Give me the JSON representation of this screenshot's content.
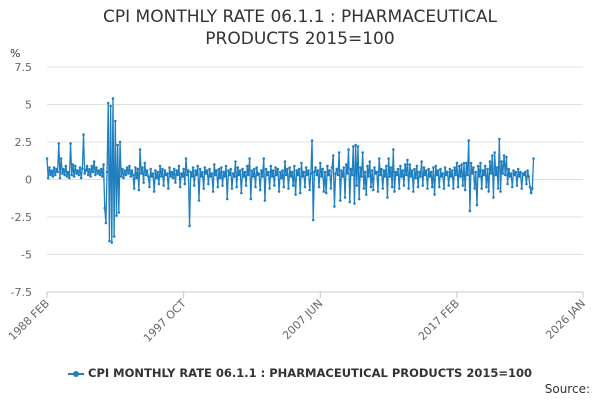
{
  "chart_data": {
    "type": "line",
    "title_lines": [
      "CPI MONTHLY RATE 06.1.1 : PHARMACEUTICAL",
      "PRODUCTS 2015=100"
    ],
    "ylabel": "%",
    "xlabel": "",
    "ylim": [
      -7.5,
      7.5
    ],
    "y_ticks": [
      7.5,
      5,
      2.5,
      0,
      -2.5,
      -5,
      -7.5
    ],
    "y_tick_labels": [
      "7.5",
      "5",
      "2.5",
      "0",
      "-2.5",
      "-5",
      "-7.5"
    ],
    "x_range": [
      "1988 FEB",
      "2026 JAN"
    ],
    "x_ticks": [
      {
        "label": "1988 FEB",
        "t": 1988.083
      },
      {
        "label": "1997 OCT",
        "t": 1997.75
      },
      {
        "label": "2007 JUN",
        "t": 2007.417
      },
      {
        "label": "2017 FEB",
        "t": 2017.083
      },
      {
        "label": "2026 JAN",
        "t": 2026.0
      }
    ],
    "grid": true,
    "legend_position": "bottom",
    "series": [
      {
        "name": "CPI MONTHLY RATE 06.1.1 : PHARMACEUTICAL PRODUCTS 2015=100",
        "color": "#1f7fbf"
      }
    ],
    "x_start": 1988.083,
    "x_step": 0.08333,
    "values": [
      1.4,
      0.1,
      0.8,
      0.3,
      0.6,
      0.2,
      0.8,
      0.3,
      0.7,
      0.5,
      2.4,
      0.1,
      1.4,
      0.4,
      0.7,
      0.3,
      0.9,
      0.2,
      0.5,
      0.1,
      2.4,
      0.3,
      1.0,
      0.2,
      0.9,
      0.4,
      0.6,
      0.3,
      0.8,
      0.1,
      0.7,
      3.0,
      0.4,
      0.6,
      0.9,
      0.3,
      0.7,
      0.2,
      0.9,
      0.5,
      1.2,
      0.3,
      0.8,
      0.4,
      0.6,
      0.3,
      0.7,
      0.2,
      1.0,
      -1.9,
      -2.9,
      0.5,
      5.1,
      -4.1,
      4.9,
      -4.2,
      5.4,
      -3.8,
      3.9,
      -2.4,
      2.3,
      -2.2,
      2.5,
      0.2,
      0.7,
      0.1,
      0.6,
      0.3,
      0.8,
      0.4,
      0.9,
      0.2,
      0.6,
      0.3,
      -0.6,
      0.8,
      0.1,
      0.7,
      -0.7,
      2.0,
      0.4,
      0.8,
      -0.2,
      1.1,
      0.3,
      0.6,
      0.2,
      -0.5,
      0.7,
      0.2,
      0.4,
      -0.8,
      0.6,
      0.1,
      0.5,
      -0.3,
      0.9,
      0.2,
      0.7,
      -0.4,
      0.6,
      0.3,
      0.4,
      -0.6,
      0.8,
      0.2,
      0.5,
      0.1,
      0.7,
      -0.2,
      0.6,
      0.3,
      0.9,
      -0.5,
      0.4,
      0.2,
      0.7,
      -0.3,
      1.4,
      0.3,
      0.6,
      -3.1,
      0.5,
      0.2,
      0.8,
      -0.4,
      0.6,
      0.3,
      0.9,
      -1.4,
      0.7,
      0.2,
      0.5,
      -0.6,
      0.8,
      0.4,
      0.6,
      -0.3,
      0.7,
      0.2,
      0.4,
      -0.8,
      1.0,
      0.3,
      0.6,
      -0.5,
      0.7,
      0.1,
      0.8,
      -0.4,
      0.5,
      0.2,
      0.9,
      -1.3,
      0.6,
      0.3,
      0.7,
      -0.6,
      0.4,
      0.2,
      1.2,
      -0.5,
      0.8,
      0.3,
      0.6,
      -0.9,
      0.7,
      0.2,
      0.5,
      -0.4,
      0.9,
      0.3,
      1.4,
      -1.3,
      0.6,
      0.2,
      0.7,
      -0.5,
      0.8,
      0.3,
      0.4,
      -0.7,
      0.6,
      0.2,
      1.4,
      -1.4,
      0.7,
      0.3,
      0.5,
      -0.6,
      0.9,
      0.2,
      0.6,
      -0.4,
      0.8,
      0.3,
      0.7,
      -0.8,
      0.5,
      0.1,
      0.6,
      -0.5,
      1.2,
      0.3,
      0.7,
      -0.6,
      0.8,
      0.2,
      0.5,
      -0.4,
      0.9,
      -1.0,
      0.6,
      0.3,
      0.7,
      -0.9,
      1.1,
      0.2,
      0.5,
      -0.5,
      0.8,
      0.3,
      0.6,
      -0.7,
      0.4,
      2.6,
      -2.7,
      0.5,
      0.8,
      0.3,
      0.6,
      -0.5,
      1.1,
      0.2,
      0.7,
      -0.8,
      0.5,
      -0.9,
      0.9,
      0.3,
      0.6,
      -0.6,
      0.8,
      1.6,
      -1.8,
      0.4,
      0.7,
      0.3,
      1.8,
      -1.4,
      0.6,
      0.2,
      0.8,
      -1.2,
      1.0,
      0.4,
      2.0,
      -1.5,
      0.7,
      0.3,
      2.2,
      -1.6,
      2.3,
      -0.4,
      2.2,
      -1.3,
      0.8,
      0.2,
      1.8,
      -0.6,
      0.5,
      -1.0,
      0.9,
      0.2,
      1.2,
      -0.5,
      0.6,
      -0.7,
      0.8,
      0.4,
      0.5,
      -0.8,
      1.4,
      0.3,
      0.7,
      -0.6,
      0.6,
      0.2,
      0.9,
      -1.2,
      1.4,
      0.2,
      0.8,
      -0.5,
      2.0,
      -0.8,
      0.5,
      0.3,
      0.7,
      -0.6,
      0.9,
      0.2,
      0.6,
      -0.4,
      1.0,
      0.3,
      1.3,
      -0.6,
      1.0,
      0.2,
      0.6,
      -0.8,
      0.7,
      0.1,
      0.9,
      -0.5,
      0.5,
      0.2,
      1.2,
      -0.4,
      0.8,
      0.3,
      0.6,
      -0.6,
      0.7,
      0.2,
      0.5,
      -0.5,
      0.8,
      -1.0,
      0.9,
      0.3,
      0.6,
      -0.5,
      0.7,
      0.2,
      0.4,
      -0.6,
      0.8,
      0.3,
      0.5,
      -0.4,
      0.7,
      0.2,
      0.6,
      -0.6,
      0.8,
      0.3,
      1.1,
      -0.5,
      0.9,
      0.2,
      1.0,
      -0.4,
      1.1,
      -0.7,
      1.1,
      0.3,
      2.6,
      -2.1,
      1.1,
      0.4,
      0.8,
      -0.6,
      0.5,
      -1.7,
      0.9,
      0.2,
      1.1,
      -0.6,
      0.6,
      0.3,
      0.9,
      -0.5,
      0.7,
      -0.8,
      1.2,
      0.4,
      1.6,
      -1.2,
      1.8,
      0.3,
      0.8,
      -0.6,
      2.7,
      -0.8,
      1.2,
      0.4,
      1.6,
      0.3,
      1.5,
      -0.3,
      0.7,
      0.2,
      0.4,
      -0.5,
      0.6,
      0.3,
      0.5,
      -0.4,
      0.7,
      0.2,
      0.5,
      -0.6,
      0.4,
      0.3,
      0.5,
      -0.3,
      0.6,
      0.2,
      -0.5,
      -0.9,
      -0.6,
      1.4
    ]
  },
  "legend": {
    "label": "CPI MONTHLY RATE 06.1.1 : PHARMACEUTICAL PRODUCTS 2015=100"
  },
  "footer": {
    "source_label": "Source:"
  }
}
